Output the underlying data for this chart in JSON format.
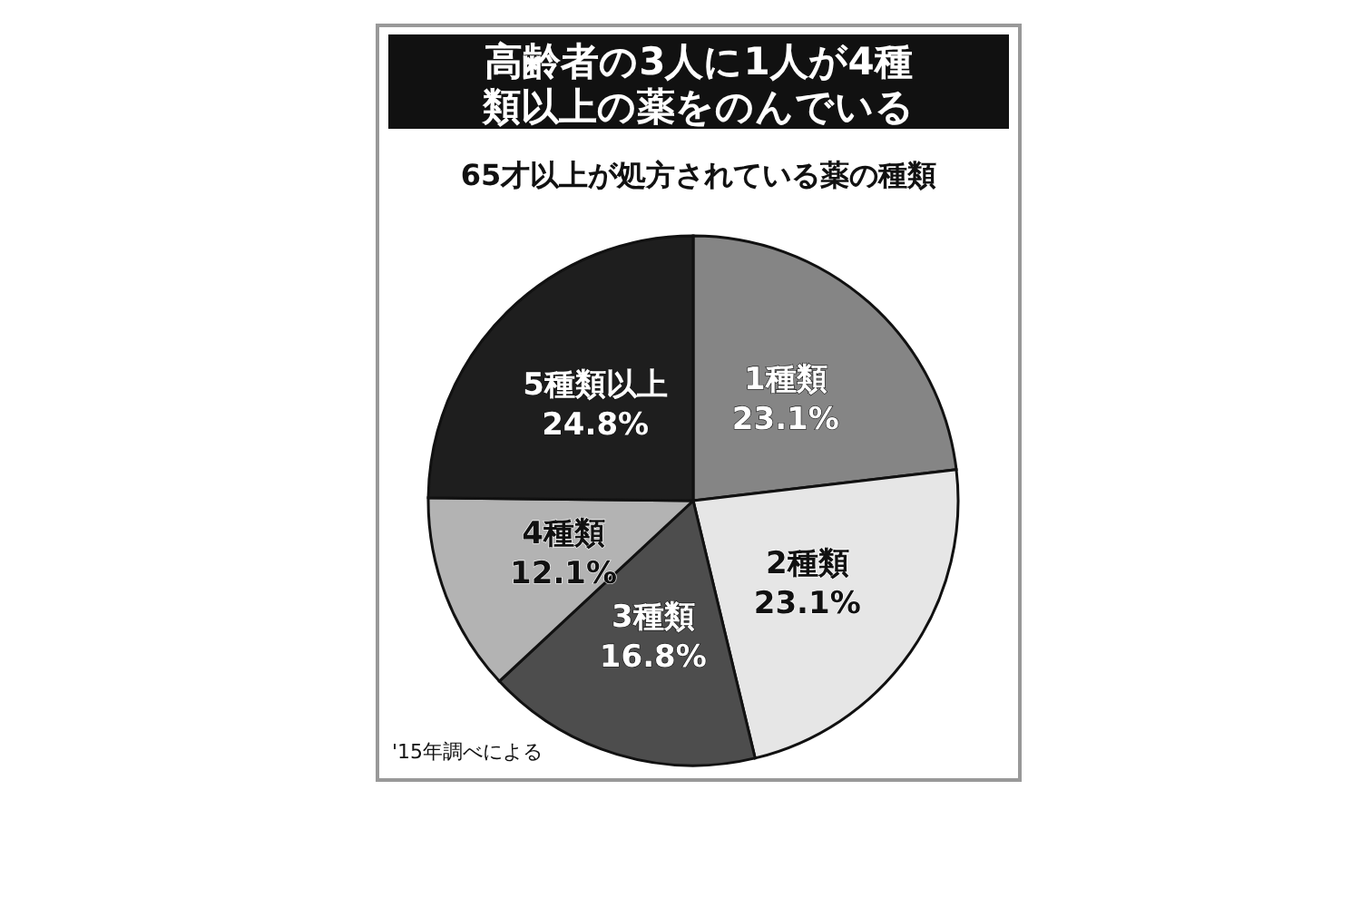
{
  "chart_data": {
    "type": "pie",
    "title": "高齢者の3人に1人が4種類以上の薬をのんでいる",
    "subtitle": "65才以上が処方されている薬の種類",
    "categories": [
      "1種類",
      "2種類",
      "3種類",
      "4種類",
      "5種類以上"
    ],
    "values": [
      23.1,
      23.1,
      16.8,
      12.1,
      24.8
    ],
    "colors": [
      "#858585",
      "#e6e6e6",
      "#4d4d4d",
      "#b3b3b3",
      "#1e1e1e"
    ],
    "value_labels": [
      "23.1%",
      "23.1%",
      "16.8%",
      "12.1%",
      "24.8%"
    ],
    "annotations": [
      "'15年調べによる"
    ]
  }
}
